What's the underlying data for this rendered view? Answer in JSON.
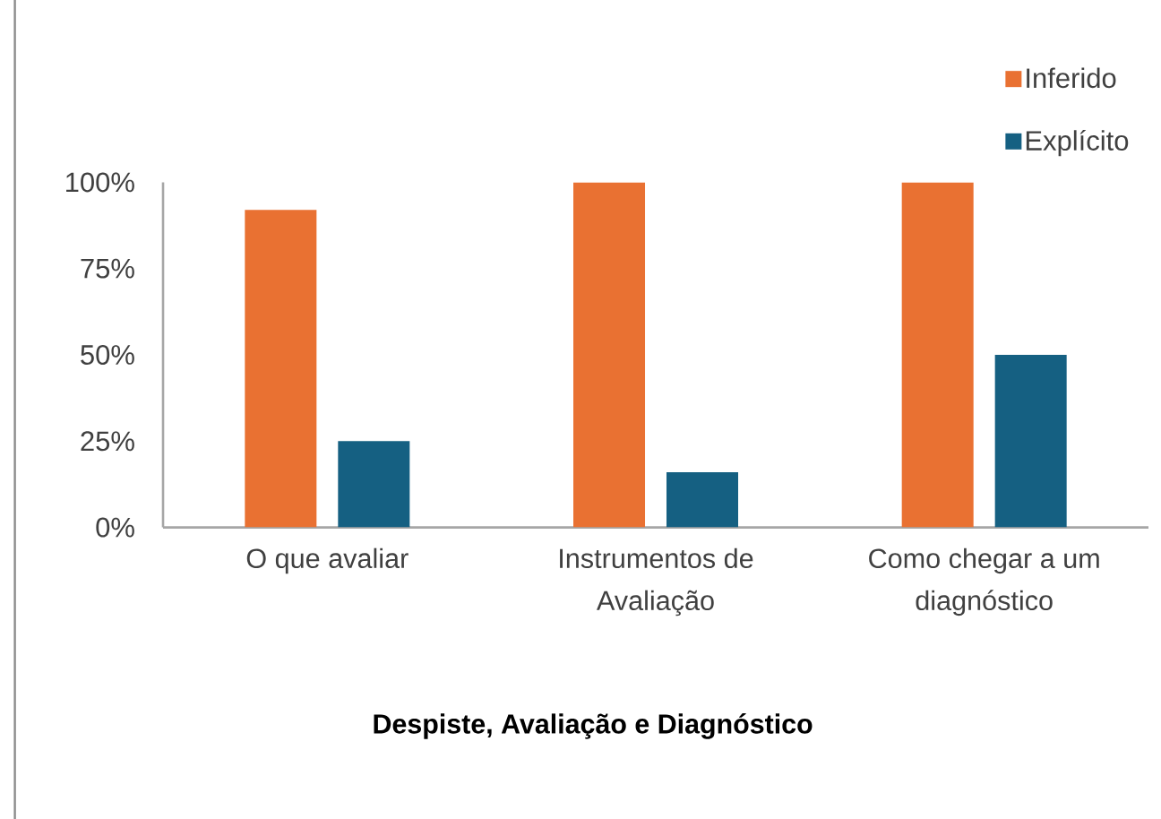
{
  "chart_data": {
    "type": "bar",
    "categories": [
      "O que avaliar",
      "Instrumentos de Avaliação",
      "Como chegar a um diagnóstico"
    ],
    "series": [
      {
        "name": "Inferido",
        "color": "#e97132",
        "values": [
          92,
          100,
          100
        ]
      },
      {
        "name": "Explícito",
        "color": "#156082",
        "values": [
          25,
          16,
          50
        ]
      }
    ],
    "xlabel": "Despiste, Avaliação e Diagnóstico",
    "ylim": [
      0,
      100
    ],
    "yticks": [
      {
        "value": 0,
        "label": "0%"
      },
      {
        "value": 25,
        "label": "25%"
      },
      {
        "value": 50,
        "label": "50%"
      },
      {
        "value": 75,
        "label": "75%"
      },
      {
        "value": 100,
        "label": "100%"
      }
    ],
    "legend": "top right"
  }
}
